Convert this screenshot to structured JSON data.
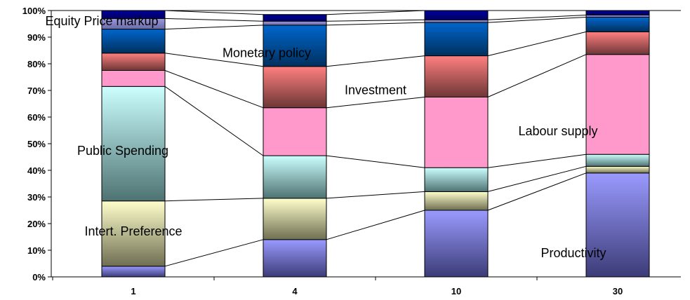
{
  "chart_data": {
    "type": "bar",
    "stacked": true,
    "normalized": true,
    "categories": [
      "1",
      "4",
      "10",
      "30"
    ],
    "ylim": [
      0,
      100
    ],
    "yticks": [
      "0%",
      "10%",
      "20%",
      "30%",
      "40%",
      "50%",
      "60%",
      "70%",
      "80%",
      "90%",
      "100%"
    ],
    "grid": false,
    "legend": "none",
    "series": [
      {
        "name": "Productivity",
        "values": [
          4,
          14,
          25,
          39
        ],
        "colors": [
          "#9a9aff",
          "#3c3c78"
        ]
      },
      {
        "name": "Intert. Preference",
        "values": [
          24.5,
          15.5,
          7,
          2.5
        ],
        "colors": [
          "#ffffcc",
          "#6e6e52"
        ]
      },
      {
        "name": "Public Spending",
        "values": [
          43,
          16,
          9,
          4.5
        ],
        "colors": [
          "#ccffff",
          "#4e7272"
        ]
      },
      {
        "name": "Labour supply",
        "values": [
          6,
          18,
          26.5,
          37.5
        ],
        "colors": [
          "#ff99cc",
          "#ff99cc"
        ]
      },
      {
        "name": "Investment",
        "values": [
          6.5,
          15.5,
          15.5,
          8.5
        ],
        "colors": [
          "#ff8080",
          "#6e3636"
        ]
      },
      {
        "name": "Monetary policy",
        "values": [
          9,
          15.5,
          12.5,
          5.5
        ],
        "colors": [
          "#0066cc",
          "#00305e"
        ]
      },
      {
        "name": "",
        "values": [
          4,
          1.5,
          1,
          0.8
        ],
        "colors": [
          "#9999dd",
          "#6a6aa8"
        ]
      },
      {
        "name": "Equity Price markup",
        "values": [
          3,
          2.5,
          3.5,
          1.7
        ],
        "colors": [
          "#000099",
          "#000066"
        ]
      }
    ],
    "annotations": [
      {
        "text": "Equity Price markup",
        "series": 7,
        "x_category": "1"
      },
      {
        "text": "Monetary policy",
        "series": 5,
        "x_category": "4"
      },
      {
        "text": "Investment",
        "series": 4,
        "x_category": "4"
      },
      {
        "text": "Labour supply",
        "series": 3,
        "x_category": "10"
      },
      {
        "text": "Public Spending",
        "series": 2,
        "x_category": "1"
      },
      {
        "text": "Intert. Preference",
        "series": 1,
        "x_category": "1"
      },
      {
        "text": "Productivity",
        "series": 0,
        "x_category": "30"
      }
    ]
  }
}
